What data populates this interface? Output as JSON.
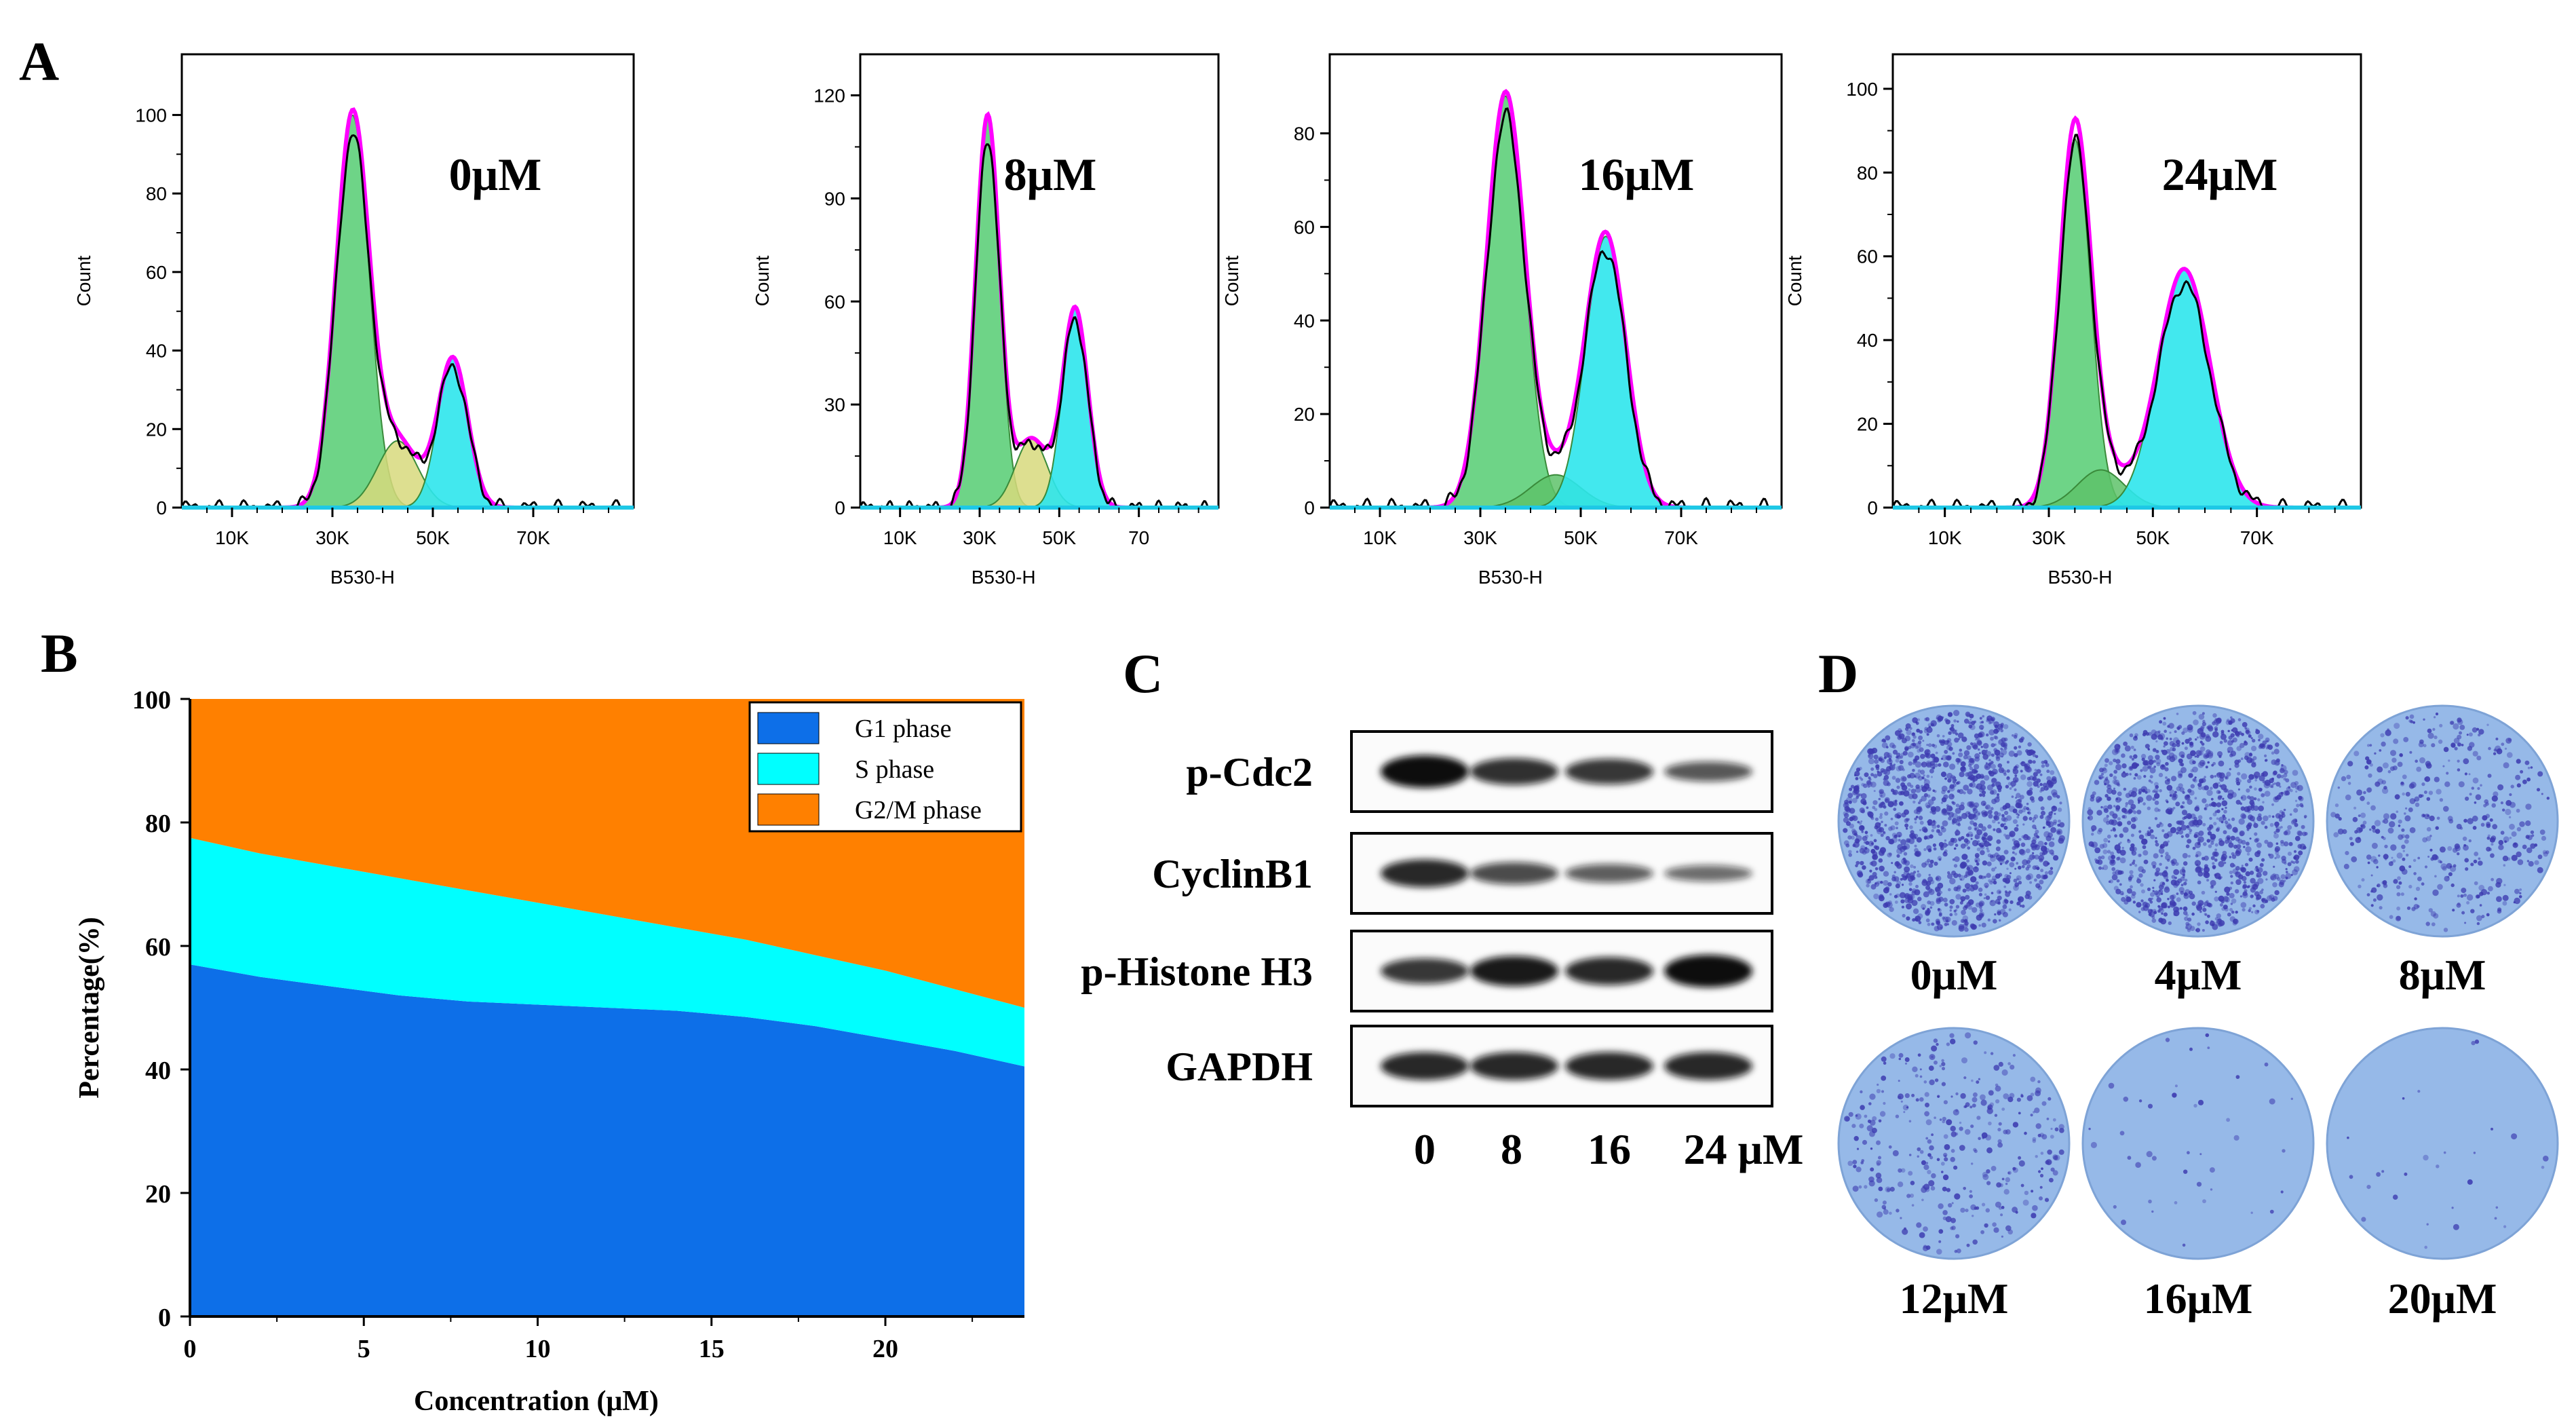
{
  "panels": {
    "a": "A",
    "b": "B",
    "c": "C",
    "d": "D"
  },
  "chart_data": [
    {
      "type": "histogram",
      "panel": "A",
      "label": "0μM",
      "xlabel": "B530-H",
      "ylabel": "Count",
      "xlim": [
        0,
        90000
      ],
      "ylim": [
        0,
        112
      ],
      "xticks": [
        "10K",
        "30K",
        "50K",
        "70K"
      ],
      "yticks": [
        0,
        20,
        40,
        60,
        80,
        100
      ],
      "peaks": {
        "g1": {
          "center": 34000,
          "sd": 3300,
          "height": 100
        },
        "s": {
          "center": 43000,
          "sd": 4000,
          "height": 17
        },
        "g2": {
          "center": 54000,
          "sd": 3000,
          "height": 38
        }
      },
      "s_fill": "khaki",
      "colors": {
        "g1": "#5ecf7a",
        "s": "#d7d97c",
        "g2": "#2ee6ec",
        "fit": "#ff00ff",
        "raw": "#000000"
      }
    },
    {
      "type": "histogram",
      "panel": "A",
      "label": "8μM",
      "xlabel": "B530-H",
      "ylabel": "Count",
      "xlim": [
        0,
        90000
      ],
      "ylim": [
        0,
        128
      ],
      "xticks": [
        "10K",
        "30K",
        "50K",
        "70"
      ],
      "yticks": [
        0,
        30,
        60,
        90,
        120
      ],
      "peaks": {
        "g1": {
          "center": 32000,
          "sd": 3000,
          "height": 114
        },
        "s": {
          "center": 43000,
          "sd": 4000,
          "height": 20
        },
        "g2": {
          "center": 54000,
          "sd": 3200,
          "height": 58
        }
      },
      "s_fill": "khaki",
      "colors": {
        "g1": "#5ecf7a",
        "s": "#d7d97c",
        "g2": "#2ee6ec",
        "fit": "#ff00ff",
        "raw": "#000000"
      }
    },
    {
      "type": "histogram",
      "panel": "A",
      "label": "16μM",
      "xlabel": "B530-H",
      "ylabel": "Count",
      "xlim": [
        0,
        90000
      ],
      "ylim": [
        0,
        94
      ],
      "xticks": [
        "10K",
        "30K",
        "50K",
        "70K"
      ],
      "yticks": [
        0,
        20,
        40,
        60,
        80
      ],
      "peaks": {
        "g1": {
          "center": 35000,
          "sd": 3800,
          "height": 88
        },
        "s": {
          "center": 45000,
          "sd": 5000,
          "height": 7
        },
        "g2": {
          "center": 55000,
          "sd": 4000,
          "height": 58
        }
      },
      "s_fill": "green",
      "colors": {
        "g1": "#5ecf7a",
        "s": "#d7d97c",
        "g2": "#2ee6ec",
        "fit": "#ff00ff",
        "raw": "#000000"
      }
    },
    {
      "type": "histogram",
      "panel": "A",
      "label": "24μM",
      "xlabel": "B530-H",
      "ylabel": "Count",
      "xlim": [
        0,
        90000
      ],
      "ylim": [
        0,
        105
      ],
      "xticks": [
        "10K",
        "30K",
        "50K",
        "70K"
      ],
      "yticks": [
        0,
        20,
        40,
        60,
        80,
        100
      ],
      "peaks": {
        "g1": {
          "center": 35000,
          "sd": 3000,
          "height": 88
        },
        "s": {
          "center": 40000,
          "sd": 4500,
          "height": 9
        },
        "g2": {
          "center": 56000,
          "sd": 5000,
          "height": 57
        }
      },
      "s_fill": "green",
      "colors": {
        "g1": "#5ecf7a",
        "s": "#d7d97c",
        "g2": "#2ee6ec",
        "fit": "#ff00ff",
        "raw": "#000000"
      }
    },
    {
      "type": "area",
      "panel": "B",
      "stacked": true,
      "xlabel": "Concentration (μM)",
      "ylabel": "Percentage(%)",
      "xlim": [
        0,
        24
      ],
      "ylim": [
        0,
        100
      ],
      "xticks": [
        0,
        5,
        10,
        15,
        20
      ],
      "yticks": [
        0,
        20,
        40,
        60,
        80,
        100
      ],
      "legend_position": "top-right",
      "x": [
        0,
        2,
        4,
        6,
        8,
        10,
        12,
        14,
        16,
        18,
        20,
        22,
        24
      ],
      "series": [
        {
          "name": "G1 phase",
          "color": "#0d6fe8",
          "values": [
            57,
            55,
            53.5,
            52,
            51,
            50.5,
            50,
            49.5,
            48.5,
            47,
            45,
            43,
            40.5
          ]
        },
        {
          "name": "S phase",
          "color": "#00ffff",
          "values": [
            20.5,
            20,
            19.5,
            19,
            18,
            16.5,
            15,
            13.5,
            12.5,
            11.5,
            11,
            10,
            9.5
          ]
        },
        {
          "name": "G2/M phase",
          "color": "#ff8000",
          "values": [
            22.5,
            25,
            27,
            29,
            31,
            33,
            35,
            37,
            39,
            41.5,
            44,
            47,
            50
          ]
        }
      ]
    }
  ],
  "western_blot": {
    "proteins": [
      "p-Cdc2",
      "CyclinB1",
      "p-Histone H3",
      "GAPDH"
    ],
    "lanes": [
      "0",
      "8",
      "16",
      "24 μM"
    ],
    "band_intensity": [
      [
        1.0,
        0.75,
        0.7,
        0.45
      ],
      [
        0.8,
        0.55,
        0.4,
        0.3
      ],
      [
        0.7,
        0.9,
        0.8,
        1.0
      ],
      [
        0.8,
        0.8,
        0.8,
        0.8
      ]
    ]
  },
  "colony": {
    "labels": [
      "0μM",
      "4μM",
      "8μM",
      "12μM",
      "16μM",
      "20μM"
    ],
    "density": [
      1.0,
      0.85,
      0.32,
      0.25,
      0.03,
      0.02
    ]
  }
}
